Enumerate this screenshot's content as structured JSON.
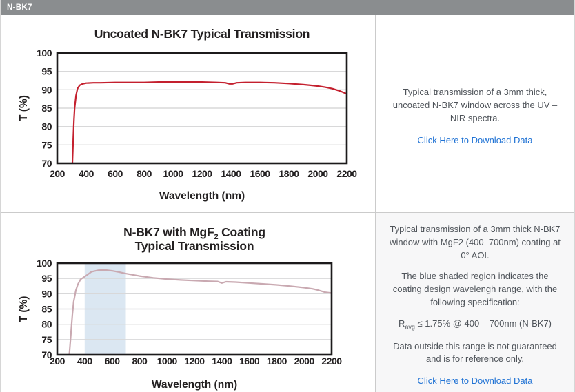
{
  "header": {
    "title": "N-BK7"
  },
  "colors": {
    "header_bg": "#8a8d8f",
    "chart_text": "#232021",
    "uncoated_line": "#c4202e",
    "coated_line": "#c9a9b1",
    "shaded_region_blue": "#dbe7f2",
    "link_blue": "#1f72d4",
    "divider": "#cbcbcb",
    "bottom_right_bg": "#f7f7f8"
  },
  "panels": {
    "top_right": {
      "description": "Typical transmission of a 3mm thick, uncoated N-BK7 window across the UV – NIR spectra.",
      "link": "Click Here to Download Data"
    },
    "bottom_right": {
      "para1": "Typical transmission of a 3mm thick N-BK7 window with MgF2 (400–700nm) coating at 0° AOI.",
      "para2": "The blue shaded region indicates the coating design wavelengh range, with the following specification:",
      "spec_r": "R",
      "spec_sub": "avg",
      "spec_rest": " ≤ 1.75% @ 400 – 700nm (N-BK7)",
      "para4": "Data outside this range is not guaranteed and is for reference only.",
      "link": "Click Here to Download Data"
    }
  },
  "chart_data": [
    {
      "type": "line",
      "title": "Uncoated N-BK7 Typical Transmission",
      "title_lines": [
        [
          {
            "text": "Uncoated N-BK7 Typical Transmission"
          }
        ]
      ],
      "xlabel": "Wavelength (nm)",
      "ylabel": "T (%)",
      "xlim": [
        200,
        2200
      ],
      "ylim": [
        70,
        100
      ],
      "xticks": [
        200,
        400,
        600,
        800,
        1000,
        1200,
        1400,
        1600,
        1800,
        2000,
        2200
      ],
      "yticks": [
        70,
        75,
        80,
        85,
        90,
        95,
        100
      ],
      "grid": "horizontal-only",
      "grid_color": "#d8d8d9",
      "axis_color": "#1c1a1b",
      "legend": "none",
      "series": [
        {
          "name": "Uncoated N-BK7",
          "color": "#c4202e",
          "x": [
            305,
            310,
            315,
            320,
            330,
            340,
            355,
            375,
            400,
            450,
            500,
            600,
            700,
            800,
            900,
            1000,
            1100,
            1200,
            1300,
            1360,
            1390,
            1410,
            1440,
            1500,
            1600,
            1700,
            1800,
            1900,
            1950,
            2000,
            2050,
            2100,
            2150,
            2200
          ],
          "y": [
            70,
            76,
            81.5,
            85,
            88.5,
            90.3,
            91.2,
            91.6,
            91.8,
            91.9,
            91.9,
            92,
            92,
            92,
            92.1,
            92.1,
            92.1,
            92.1,
            92,
            91.9,
            91.6,
            91.6,
            91.9,
            92,
            92,
            91.9,
            91.7,
            91.4,
            91.2,
            91,
            90.7,
            90.3,
            89.7,
            88.9
          ]
        }
      ]
    },
    {
      "type": "line",
      "title": "N-BK7 with MgF2 Coating Typical Transmission",
      "title_lines": [
        [
          {
            "text": "N-BK7 with MgF"
          },
          {
            "text": "2",
            "sub": true
          },
          {
            "text": " Coating"
          }
        ],
        [
          {
            "text": "Typical Transmission"
          }
        ]
      ],
      "xlabel": "Wavelength (nm)",
      "ylabel": "T (%)",
      "xlim": [
        200,
        2200
      ],
      "ylim": [
        70,
        100
      ],
      "xticks": [
        200,
        400,
        600,
        800,
        1000,
        1200,
        1400,
        1600,
        1800,
        2000,
        2200
      ],
      "yticks": [
        70,
        75,
        80,
        85,
        90,
        95,
        100
      ],
      "grid": "horizontal-only",
      "grid_color": "#d8d8d9",
      "axis_color": "#1c1a1b",
      "legend": "none",
      "shaded_region": {
        "x": [
          400,
          700
        ],
        "color": "#dbe7f2",
        "meaning": "coating design wavelength range"
      },
      "series": [
        {
          "name": "N-BK7 with MgF2 coating",
          "color": "#c9a9b1",
          "x": [
            288,
            295,
            300,
            310,
            320,
            335,
            350,
            370,
            400,
            450,
            500,
            550,
            600,
            650,
            700,
            750,
            800,
            900,
            1000,
            1100,
            1200,
            1300,
            1370,
            1400,
            1430,
            1500,
            1600,
            1700,
            1800,
            1900,
            2000,
            2060,
            2100,
            2150,
            2200
          ],
          "y": [
            70,
            74,
            77,
            83,
            87.5,
            91,
            93,
            94.7,
            95.6,
            97.2,
            97.7,
            97.8,
            97.5,
            97.1,
            96.6,
            96.2,
            95.8,
            95.2,
            94.8,
            94.5,
            94.3,
            94.1,
            94,
            93.5,
            93.9,
            93.8,
            93.5,
            93.2,
            92.9,
            92.5,
            92,
            91.6,
            91.2,
            90.5,
            90.2
          ]
        }
      ]
    }
  ]
}
